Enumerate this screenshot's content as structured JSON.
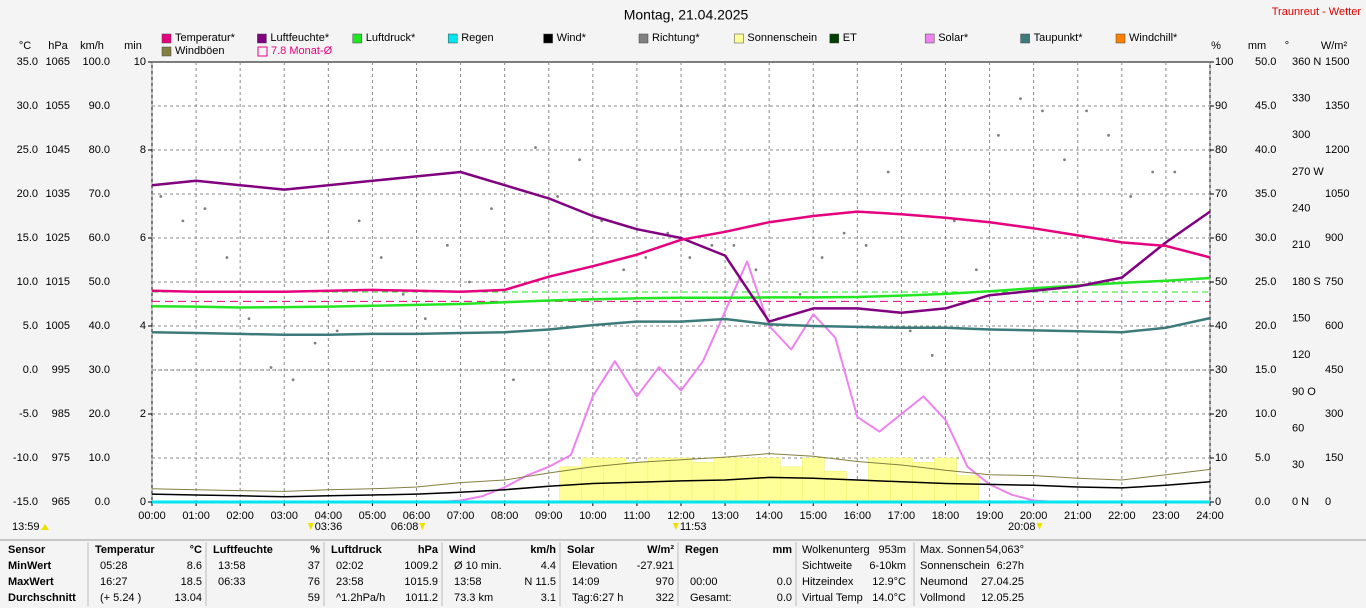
{
  "chart_data": {
    "type": "line",
    "title": "Montag, 21.04.2025",
    "site": "Traunreut - Wetter",
    "grid": true,
    "xlim": [
      0,
      24
    ],
    "xticks": [
      {
        "value": 0,
        "label": "00:00"
      },
      {
        "value": 1,
        "label": "01:00"
      },
      {
        "value": 2,
        "label": "02:00"
      },
      {
        "value": 3,
        "label": "03:00"
      },
      {
        "value": 4,
        "label": "04:00"
      },
      {
        "value": 5,
        "label": "05:00"
      },
      {
        "value": 6,
        "label": "06:00"
      },
      {
        "value": 7,
        "label": "07:00"
      },
      {
        "value": 8,
        "label": "08:00"
      },
      {
        "value": 9,
        "label": "09:00"
      },
      {
        "value": 10,
        "label": "10:00"
      },
      {
        "value": 11,
        "label": "11:00"
      },
      {
        "value": 12,
        "label": "12:00"
      },
      {
        "value": 13,
        "label": "13:00"
      },
      {
        "value": 14,
        "label": "14:00"
      },
      {
        "value": 15,
        "label": "15:00"
      },
      {
        "value": 16,
        "label": "16:00"
      },
      {
        "value": 17,
        "label": "17:00"
      },
      {
        "value": 18,
        "label": "18:00"
      },
      {
        "value": 19,
        "label": "19:00"
      },
      {
        "value": 20,
        "label": "20:00"
      },
      {
        "value": 21,
        "label": "21:00"
      },
      {
        "value": 22,
        "label": "22:00"
      },
      {
        "value": 23,
        "label": "23:00"
      },
      {
        "value": 24,
        "label": "24:00"
      }
    ],
    "x": [
      0,
      1,
      2,
      3,
      4,
      5,
      6,
      7,
      8,
      9,
      10,
      11,
      12,
      13,
      14,
      15,
      16,
      17,
      18,
      19,
      20,
      21,
      22,
      23,
      24
    ],
    "axes": [
      {
        "unit": "°C",
        "lim": [
          -15,
          35
        ],
        "ticks": [
          {
            "value": -15,
            "label": "-15.0"
          },
          {
            "value": -10,
            "label": "-10.0"
          },
          {
            "value": -5,
            "label": "-5.0"
          },
          {
            "value": 0,
            "label": "0.0"
          },
          {
            "value": 5,
            "label": "5.0"
          },
          {
            "value": 10,
            "label": "10.0"
          },
          {
            "value": 15,
            "label": "15.0"
          },
          {
            "value": 20,
            "label": "20.0"
          },
          {
            "value": 25,
            "label": "25.0"
          },
          {
            "value": 30,
            "label": "30.0"
          },
          {
            "value": 35,
            "label": "35.0"
          }
        ]
      },
      {
        "unit": "hPa",
        "lim": [
          965,
          1065
        ],
        "ticks": [
          965,
          975,
          985,
          995,
          1005,
          1015,
          1025,
          1035,
          1045,
          1055,
          1065
        ]
      },
      {
        "unit": "km/h",
        "lim": [
          0,
          100
        ],
        "ticks": [
          {
            "value": 0,
            "label": "0.0"
          },
          {
            "value": 10,
            "label": "10.0"
          },
          {
            "value": 20,
            "label": "20.0"
          },
          {
            "value": 30,
            "label": "30.0"
          },
          {
            "value": 40,
            "label": "40.0"
          },
          {
            "value": 50,
            "label": "50.0"
          },
          {
            "value": 60,
            "label": "60.0"
          },
          {
            "value": 70,
            "label": "70.0"
          },
          {
            "value": 80,
            "label": "80.0"
          },
          {
            "value": 90,
            "label": "90.0"
          },
          {
            "value": 100,
            "label": "100.0"
          }
        ]
      },
      {
        "unit": "min",
        "lim": [
          0,
          10
        ],
        "ticks": [
          0,
          2,
          4,
          6,
          8,
          10
        ]
      },
      {
        "unit": "%",
        "lim": [
          0,
          100
        ],
        "ticks": [
          0,
          10,
          20,
          30,
          40,
          50,
          60,
          70,
          80,
          90,
          100
        ]
      },
      {
        "unit": "mm",
        "lim": [
          0,
          50
        ],
        "ticks": [
          {
            "value": 0,
            "label": "0.0"
          },
          {
            "value": 5,
            "label": "5.0"
          },
          {
            "value": 10,
            "label": "10.0"
          },
          {
            "value": 15,
            "label": "15.0"
          },
          {
            "value": 20,
            "label": "20.0"
          },
          {
            "value": 25,
            "label": "25.0"
          },
          {
            "value": 30,
            "label": "30.0"
          },
          {
            "value": 35,
            "label": "35.0"
          },
          {
            "value": 40,
            "label": "40.0"
          },
          {
            "value": 45,
            "label": "45.0"
          },
          {
            "value": 50,
            "label": "50.0"
          }
        ]
      },
      {
        "unit": "°",
        "lim": [
          0,
          360
        ],
        "ticks": [
          {
            "value": 0,
            "label": "0 N"
          },
          30,
          60,
          {
            "value": 90,
            "label": "90 O"
          },
          120,
          150,
          {
            "value": 180,
            "label": "180 S"
          },
          210,
          240,
          {
            "value": 270,
            "label": "270 W"
          },
          300,
          330,
          {
            "value": 360,
            "label": "360 N"
          }
        ]
      },
      {
        "unit": "W/m²",
        "lim": [
          0,
          1500
        ],
        "ticks": [
          0,
          150,
          300,
          450,
          600,
          750,
          900,
          1050,
          1200,
          1350,
          1500
        ]
      }
    ],
    "series": [
      {
        "name": "Temperatur*",
        "type": "line",
        "axis": 0,
        "color": "#e6007e",
        "values": [
          9.0,
          8.9,
          8.9,
          8.9,
          9.0,
          9.1,
          9.0,
          8.9,
          9.1,
          10.6,
          11.8,
          13.1,
          14.8,
          15.7,
          16.8,
          17.5,
          18.0,
          17.7,
          17.3,
          16.8,
          16.1,
          15.3,
          14.5,
          14.1,
          12.8
        ]
      },
      {
        "name": "Luftfeuchte*",
        "type": "line",
        "axis": 4,
        "color": "#800080",
        "values": [
          72,
          73,
          72,
          71,
          72,
          73,
          74,
          75,
          72,
          69,
          65,
          62,
          60,
          56,
          41,
          44,
          44,
          43,
          44,
          47,
          48,
          49,
          51,
          59,
          66
        ]
      },
      {
        "name": "Luftdruck*",
        "type": "line",
        "axis": 1,
        "color": "#22e622",
        "values": [
          1009.5,
          1009.4,
          1009.2,
          1009.3,
          1009.4,
          1009.6,
          1009.8,
          1010.0,
          1010.4,
          1010.8,
          1011.1,
          1011.3,
          1011.4,
          1011.4,
          1011.5,
          1011.5,
          1011.6,
          1011.9,
          1012.3,
          1012.9,
          1013.6,
          1014.2,
          1014.8,
          1015.3,
          1015.9
        ]
      },
      {
        "name": "Regen",
        "type": "line",
        "axis": 5,
        "color": "#00e5ee",
        "values": [
          0,
          0,
          0,
          0,
          0,
          0,
          0,
          0,
          0,
          0,
          0,
          0,
          0,
          0,
          0,
          0,
          0,
          0,
          0,
          0,
          0,
          0,
          0,
          0,
          0
        ]
      },
      {
        "name": "Wind*",
        "type": "line",
        "axis": 2,
        "color": "#000000",
        "values": [
          1.8,
          1.6,
          1.4,
          1.2,
          1.4,
          1.6,
          1.8,
          2.2,
          2.8,
          3.6,
          4.2,
          4.5,
          4.8,
          5.0,
          5.6,
          5.4,
          5.0,
          4.6,
          4.2,
          4.0,
          3.8,
          3.4,
          3.2,
          3.8,
          4.6
        ]
      },
      {
        "name": "Richtung*",
        "type": "scatter",
        "axis": 6,
        "color": "#808080",
        "x": [
          0.2,
          0.7,
          1.2,
          1.7,
          2.2,
          2.7,
          3.2,
          3.7,
          4.2,
          4.7,
          5.2,
          5.7,
          6.2,
          6.7,
          7.2,
          7.7,
          8.2,
          8.7,
          9.2,
          9.7,
          10.2,
          10.7,
          11.2,
          11.7,
          12.2,
          12.7,
          13.2,
          13.7,
          14.2,
          14.7,
          15.2,
          15.7,
          16.2,
          16.7,
          17.2,
          17.7,
          18.2,
          18.7,
          19.2,
          19.7,
          20.2,
          20.7,
          21.2,
          21.7,
          22.2,
          22.7,
          23.2,
          23.7
        ],
        "values": [
          250,
          230,
          240,
          200,
          150,
          110,
          100,
          130,
          140,
          230,
          200,
          170,
          150,
          210,
          180,
          240,
          100,
          290,
          250,
          280,
          230,
          190,
          200,
          220,
          200,
          210,
          210,
          190,
          150,
          170,
          200,
          220,
          210,
          270,
          140,
          120,
          230,
          190,
          300,
          330,
          320,
          280,
          320,
          300,
          250,
          270,
          270,
          230
        ]
      },
      {
        "name": "Sonnenschein",
        "type": "bar",
        "axis": 3,
        "color": "#ffff99",
        "x": [
          9.5,
          10,
          10.5,
          11,
          11.5,
          12,
          12.5,
          13,
          13.5,
          14,
          14.5,
          15,
          15.5,
          16,
          16.5,
          17,
          17.5,
          18,
          18.5
        ],
        "values": [
          0.8,
          1.0,
          1.0,
          0.9,
          1.0,
          1.0,
          0.9,
          1.0,
          1.0,
          1.0,
          0.8,
          1.0,
          0.7,
          0.5,
          1.0,
          1.0,
          0.9,
          1.0,
          0.6
        ]
      },
      {
        "name": "ET",
        "type": "line",
        "color": "#004000"
      },
      {
        "name": "Solar*",
        "type": "line",
        "axis": 7,
        "color": "#ee82ee",
        "x": [
          0,
          0.5,
          1,
          1.5,
          2,
          2.5,
          3,
          3.5,
          4,
          4.5,
          5,
          5.5,
          6,
          6.5,
          7,
          7.5,
          8,
          8.5,
          9,
          9.5,
          10,
          10.5,
          11,
          11.5,
          12,
          12.5,
          13,
          13.5,
          14,
          14.5,
          15,
          15.5,
          16,
          16.5,
          17,
          17.5,
          18,
          18.5,
          19,
          19.5,
          20,
          20.5,
          21,
          21.5,
          22,
          22.5,
          23,
          23.5,
          24
        ],
        "values": [
          0,
          0,
          0,
          0,
          0,
          0,
          0,
          0,
          0,
          0,
          0,
          0,
          0,
          0,
          5,
          20,
          50,
          90,
          120,
          160,
          360,
          480,
          360,
          460,
          380,
          480,
          650,
          820,
          600,
          520,
          640,
          560,
          290,
          240,
          300,
          360,
          280,
          120,
          60,
          25,
          5,
          0,
          0,
          0,
          0,
          0,
          0,
          0,
          0
        ]
      },
      {
        "name": "Taupunkt*",
        "type": "line",
        "axis": 0,
        "color": "#3d7a7a",
        "values": [
          4.3,
          4.2,
          4.1,
          4.0,
          4.0,
          4.1,
          4.1,
          4.2,
          4.3,
          4.6,
          5.1,
          5.5,
          5.5,
          5.8,
          5.2,
          5.0,
          4.9,
          4.8,
          4.8,
          4.6,
          4.5,
          4.4,
          4.3,
          4.8,
          5.9
        ]
      },
      {
        "name": "Windchill*",
        "type": "line",
        "color": "#ff8000"
      },
      {
        "name": "Windböen",
        "type": "line",
        "axis": 2,
        "color": "#808040",
        "values": [
          3.0,
          2.8,
          2.6,
          2.4,
          2.8,
          3.0,
          3.4,
          4.4,
          5.0,
          6.6,
          8.0,
          9.0,
          9.6,
          10.2,
          11.0,
          10.4,
          9.2,
          8.4,
          7.2,
          6.2,
          6.0,
          5.4,
          5.0,
          6.2,
          7.4
        ]
      }
    ],
    "monthly_avg": {
      "label": "7.8 Monat-Ø",
      "value": 7.8,
      "axis": 0,
      "color": "#e6007e"
    },
    "annotations": [
      {
        "label": "13:59"
      },
      {
        "label": "03:36",
        "x": 3.6
      },
      {
        "label": "06:08",
        "x": 6.133
      },
      {
        "label": "11:53",
        "x": 11.883
      },
      {
        "label": "20:08",
        "x": 20.133
      }
    ]
  },
  "stats": {
    "row_labels": [
      "Sensor",
      "MinWert",
      "MaxWert",
      "Durchschnitt"
    ],
    "groups": [
      {
        "title": "Temperatur",
        "unit": "°C",
        "rows": [
          [
            "05:28",
            "8.6"
          ],
          [
            "16:27",
            "18.5"
          ],
          [
            "(+ 5.24 )",
            "13.04"
          ]
        ]
      },
      {
        "title": "Luftfeuchte",
        "unit": "%",
        "rows": [
          [
            "13:58",
            "37"
          ],
          [
            "06:33",
            "76"
          ],
          [
            null,
            "59"
          ]
        ]
      },
      {
        "title": "Luftdruck",
        "unit": "hPa",
        "rows": [
          [
            "02:02",
            "1009.2"
          ],
          [
            "23:58",
            "1015.9"
          ],
          [
            "^1.2hPa/h",
            "1011.2"
          ]
        ]
      },
      {
        "title": "Wind",
        "unit": "km/h",
        "rows": [
          [
            "Ø 10 min.",
            "4.4"
          ],
          [
            "13:58",
            "N 11.5"
          ],
          [
            "73.3 km",
            "3.1"
          ]
        ]
      },
      {
        "title": "Solar",
        "unit": "W/m²",
        "rows": [
          [
            "Elevation",
            "-27.921"
          ],
          [
            "14:09",
            "970"
          ],
          [
            "Tag:6:27 h",
            "322"
          ]
        ]
      },
      {
        "title": "Regen",
        "unit": "mm",
        "rows": [
          [
            null,
            null
          ],
          [
            "00:00",
            "0.0"
          ],
          [
            "Gesamt:",
            "0.0"
          ]
        ]
      }
    ],
    "extras": [
      [
        [
          "Wolkenunterg",
          "953m"
        ],
        [
          "Sichtweite",
          "6-10km"
        ],
        [
          "Hitzeindex",
          "12.9°C"
        ],
        [
          "Virtual Temp",
          "14.0°C"
        ]
      ],
      [
        [
          "Max. Sonnen",
          "54,063°"
        ],
        [
          "Sonnenschein",
          "6:27h"
        ],
        [
          "Neumond",
          "27.04.25"
        ],
        [
          "Vollmond",
          "12.05.25"
        ]
      ]
    ]
  }
}
